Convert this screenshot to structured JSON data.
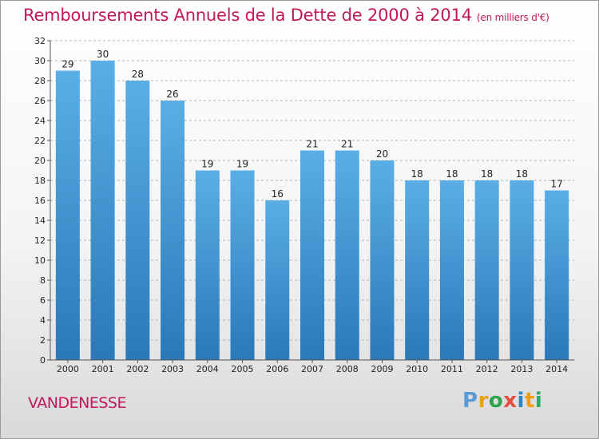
{
  "chart_data": {
    "type": "bar",
    "title": "Remboursements Annuels de la Dette de 2000 à 2014",
    "subtitle": "(en milliers d'€)",
    "categories": [
      "2000",
      "2001",
      "2002",
      "2003",
      "2004",
      "2005",
      "2006",
      "2007",
      "2008",
      "2009",
      "2010",
      "2011",
      "2012",
      "2013",
      "2014"
    ],
    "values": [
      29,
      30,
      28,
      26,
      19,
      19,
      16,
      21,
      21,
      20,
      18,
      18,
      18,
      18,
      17
    ],
    "ylim": [
      0,
      32
    ],
    "yticks": [
      0,
      2,
      4,
      6,
      8,
      10,
      12,
      14,
      16,
      18,
      20,
      22,
      24,
      26,
      28,
      30,
      32
    ],
    "grid": true,
    "bar_color_top": "#5aaee6",
    "bar_color_bottom": "#2b78b8"
  },
  "footer": {
    "city": "VANDENESSE",
    "logo": [
      "P",
      "r",
      "o",
      "x",
      "i",
      "t",
      "i"
    ],
    "logo_colors": [
      "#5b9bd5",
      "#e8a317",
      "#2ea44f",
      "#e74c3c",
      "#2e86c1",
      "#f39c12",
      "#27ae60"
    ]
  }
}
